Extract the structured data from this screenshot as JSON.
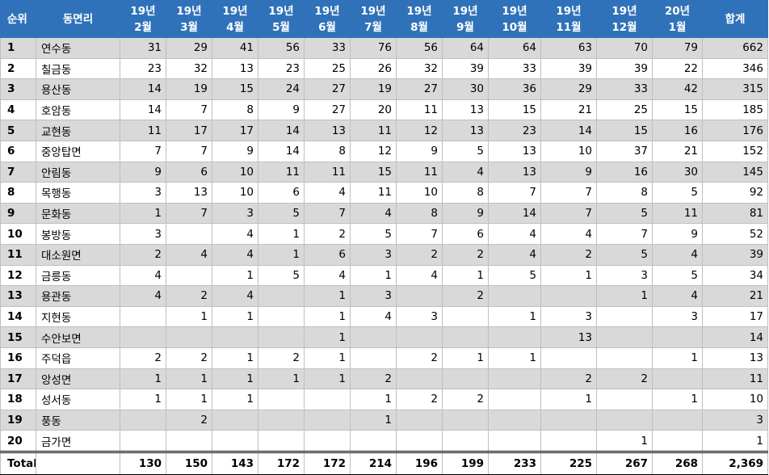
{
  "headers": [
    "순위",
    "동면리",
    "19년\n2월",
    "19년\n3월",
    "19년\n4월",
    "19년\n5월",
    "19년\n6월",
    "19년\n7월",
    "19년\n8월",
    "19년\n9월",
    "19년\n10월",
    "19년\n11월",
    "19년\n12월",
    "20년\n1월",
    "합계"
  ],
  "rows": [
    [
      "1",
      "연수동",
      "31",
      "29",
      "41",
      "56",
      "33",
      "76",
      "56",
      "64",
      "64",
      "63",
      "70",
      "79",
      "662"
    ],
    [
      "2",
      "칠금동",
      "23",
      "32",
      "13",
      "23",
      "25",
      "26",
      "32",
      "39",
      "33",
      "39",
      "39",
      "22",
      "346"
    ],
    [
      "3",
      "용산동",
      "14",
      "19",
      "15",
      "24",
      "27",
      "19",
      "27",
      "30",
      "36",
      "29",
      "33",
      "42",
      "315"
    ],
    [
      "4",
      "호암동",
      "14",
      "7",
      "8",
      "9",
      "27",
      "20",
      "11",
      "13",
      "15",
      "21",
      "25",
      "15",
      "185"
    ],
    [
      "5",
      "교현동",
      "11",
      "17",
      "17",
      "14",
      "13",
      "11",
      "12",
      "13",
      "23",
      "14",
      "15",
      "16",
      "176"
    ],
    [
      "6",
      "중앙탑면",
      "7",
      "7",
      "9",
      "14",
      "8",
      "12",
      "9",
      "5",
      "13",
      "10",
      "37",
      "21",
      "152"
    ],
    [
      "7",
      "안림동",
      "9",
      "6",
      "10",
      "11",
      "11",
      "15",
      "11",
      "4",
      "13",
      "9",
      "16",
      "30",
      "145"
    ],
    [
      "8",
      "목행동",
      "3",
      "13",
      "10",
      "6",
      "4",
      "11",
      "10",
      "8",
      "7",
      "7",
      "8",
      "5",
      "92"
    ],
    [
      "9",
      "문화동",
      "1",
      "7",
      "3",
      "5",
      "7",
      "4",
      "8",
      "9",
      "14",
      "7",
      "5",
      "11",
      "81"
    ],
    [
      "10",
      "봉방동",
      "3",
      "",
      "4",
      "1",
      "2",
      "5",
      "7",
      "6",
      "4",
      "4",
      "7",
      "9",
      "52"
    ],
    [
      "11",
      "대소원면",
      "2",
      "4",
      "4",
      "1",
      "6",
      "3",
      "2",
      "2",
      "4",
      "2",
      "5",
      "4",
      "39"
    ],
    [
      "12",
      "금릉동",
      "4",
      "",
      "1",
      "5",
      "4",
      "1",
      "4",
      "1",
      "5",
      "1",
      "3",
      "5",
      "34"
    ],
    [
      "13",
      "용관동",
      "4",
      "2",
      "4",
      "",
      "1",
      "3",
      "",
      "2",
      "",
      "",
      "1",
      "4",
      "21"
    ],
    [
      "14",
      "지현동",
      "",
      "1",
      "1",
      "",
      "1",
      "4",
      "3",
      "",
      "1",
      "3",
      "",
      "3",
      "17"
    ],
    [
      "15",
      "수안보면",
      "",
      "",
      "",
      "",
      "1",
      "",
      "",
      "",
      "",
      "13",
      "",
      "",
      "14"
    ],
    [
      "16",
      "주덕읍",
      "2",
      "2",
      "1",
      "2",
      "1",
      "",
      "2",
      "1",
      "1",
      "",
      "",
      "1",
      "13"
    ],
    [
      "17",
      "앙성면",
      "1",
      "1",
      "1",
      "1",
      "1",
      "2",
      "",
      "",
      "",
      "2",
      "2",
      "",
      "11"
    ],
    [
      "18",
      "성서동",
      "1",
      "1",
      "1",
      "",
      "",
      "1",
      "2",
      "2",
      "",
      "1",
      "",
      "1",
      "10"
    ],
    [
      "19",
      "풍동",
      "",
      "2",
      "",
      "",
      "",
      "1",
      "",
      "",
      "",
      "",
      "",
      "",
      "3"
    ],
    [
      "20",
      "금가면",
      "",
      "",
      "",
      "",
      "",
      "",
      "",
      "",
      "",
      "",
      "1",
      "",
      "1"
    ]
  ],
  "total": [
    "Total",
    "",
    "130",
    "150",
    "143",
    "172",
    "172",
    "214",
    "196",
    "199",
    "233",
    "225",
    "267",
    "268",
    "2,369"
  ]
}
